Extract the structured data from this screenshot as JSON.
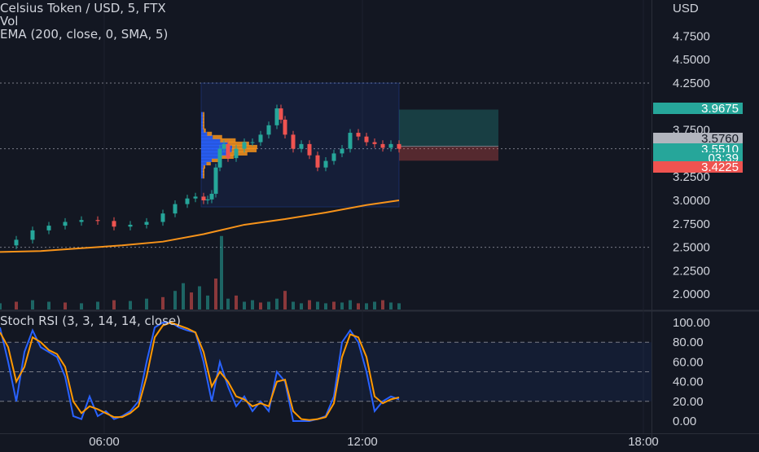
{
  "header": {
    "title": "Celsius Token / USD, 5, FTX",
    "vol_label": "Vol",
    "ema_label": "EMA (200, close, 0, SMA, 5)",
    "stoch_label": "Stoch RSI (3, 3, 14, 14, close)"
  },
  "colors": {
    "background": "#131722",
    "up": "#26a69a",
    "down": "#ef5350",
    "ema": "#f7931a",
    "stoch_k": "#2962ff",
    "stoch_d": "#ff9800",
    "profile_up": "#f7931a",
    "profile_down": "#2962ff"
  },
  "chart_data": [
    {
      "type": "line",
      "name": "price",
      "currency": "USD",
      "yticks": [
        "4.7500",
        "4.5000",
        "4.2500",
        "3.7500",
        "3.2500",
        "3.0000",
        "2.7500",
        "2.5000",
        "2.2500",
        "2.0000"
      ],
      "y_range": [
        1.8,
        4.95
      ],
      "xticks": [
        "06:00",
        "12:00",
        "18:00"
      ],
      "price_tags": [
        {
          "value": "3.9675",
          "kind": "target"
        },
        {
          "value": "3.5760",
          "kind": "entry"
        },
        {
          "value": "3.5510",
          "kind": "last"
        },
        {
          "value": "03:39",
          "kind": "countdown"
        },
        {
          "value": "3.4225",
          "kind": "stop"
        }
      ],
      "horizontal_lines": [
        4.25,
        3.55,
        2.5
      ],
      "series": [
        {
          "kind": "price",
          "x": [
            0,
            20,
            40,
            60,
            80,
            100,
            120,
            140,
            160,
            180,
            200,
            215,
            230,
            240,
            250,
            255,
            260,
            265,
            270,
            275,
            280,
            290,
            300,
            310,
            320,
            330,
            340,
            345,
            350,
            360,
            370,
            380,
            390,
            400,
            410,
            420,
            430,
            440,
            450,
            460,
            470,
            480,
            490
          ],
          "y": [
            2.52,
            2.58,
            2.68,
            2.73,
            2.77,
            2.79,
            2.78,
            2.72,
            2.74,
            2.77,
            2.86,
            2.96,
            3.02,
            3.04,
            3.0,
            3.01,
            3.07,
            3.35,
            3.55,
            3.6,
            3.45,
            3.55,
            3.62,
            3.62,
            3.7,
            3.8,
            3.98,
            3.86,
            3.7,
            3.55,
            3.6,
            3.48,
            3.35,
            3.42,
            3.5,
            3.55,
            3.72,
            3.68,
            3.62,
            3.6,
            3.56,
            3.6,
            3.55
          ]
        },
        {
          "kind": "ema",
          "x": [
            0,
            50,
            100,
            150,
            200,
            250,
            300,
            350,
            400,
            450,
            490
          ],
          "y": [
            2.45,
            2.46,
            2.49,
            2.52,
            2.56,
            2.64,
            2.74,
            2.8,
            2.87,
            2.95,
            3.0
          ]
        }
      ],
      "volume": {
        "x": [
          0,
          20,
          40,
          60,
          80,
          100,
          120,
          140,
          160,
          180,
          200,
          215,
          225,
          235,
          245,
          255,
          265,
          272,
          280,
          290,
          300,
          310,
          320,
          330,
          340,
          350,
          360,
          370,
          380,
          390,
          400,
          410,
          420,
          430,
          440,
          450,
          460,
          470,
          480,
          490
        ],
        "values": [
          8,
          10,
          12,
          10,
          9,
          8,
          10,
          12,
          11,
          14,
          16,
          24,
          34,
          22,
          30,
          18,
          40,
          95,
          14,
          18,
          10,
          12,
          9,
          10,
          14,
          24,
          10,
          8,
          12,
          10,
          8,
          10,
          9,
          12,
          8,
          8,
          10,
          12,
          9,
          8
        ],
        "max": 100
      },
      "trade_box": {
        "x_start": 490,
        "x_end": 612,
        "entry": 3.576,
        "target": 3.9675,
        "stop": 3.4225
      },
      "profile_box": {
        "x_start": 247,
        "x_end": 490,
        "y_top": 4.25,
        "y_bottom": 2.93
      }
    },
    {
      "type": "line",
      "name": "stoch_rsi",
      "yticks": [
        "100.00",
        "80.00",
        "60.00",
        "40.00",
        "20.00",
        "0.00"
      ],
      "y_range": [
        0,
        100
      ],
      "levels": [
        80,
        50,
        20
      ],
      "series": [
        {
          "kind": "k",
          "x": [
            0,
            10,
            20,
            30,
            40,
            50,
            60,
            70,
            80,
            90,
            100,
            110,
            120,
            130,
            140,
            150,
            160,
            170,
            180,
            190,
            200,
            210,
            220,
            230,
            240,
            250,
            260,
            270,
            280,
            290,
            300,
            310,
            320,
            330,
            340,
            350,
            360,
            370,
            380,
            390,
            400,
            410,
            420,
            430,
            440,
            450,
            460,
            470,
            480,
            490
          ],
          "y": [
            95,
            60,
            20,
            70,
            92,
            75,
            70,
            65,
            45,
            5,
            2,
            25,
            5,
            10,
            2,
            5,
            10,
            20,
            60,
            95,
            100,
            100,
            95,
            92,
            90,
            60,
            20,
            60,
            35,
            15,
            25,
            10,
            20,
            10,
            50,
            40,
            0,
            0,
            0,
            2,
            5,
            25,
            80,
            92,
            80,
            50,
            10,
            20,
            25,
            22
          ]
        },
        {
          "kind": "d",
          "x": [
            0,
            10,
            20,
            30,
            40,
            50,
            60,
            70,
            80,
            90,
            100,
            110,
            120,
            130,
            140,
            150,
            160,
            170,
            180,
            190,
            200,
            210,
            220,
            230,
            240,
            250,
            260,
            270,
            280,
            290,
            300,
            310,
            320,
            330,
            340,
            350,
            360,
            370,
            380,
            390,
            400,
            410,
            420,
            430,
            440,
            450,
            460,
            470,
            480,
            490
          ],
          "y": [
            90,
            75,
            40,
            55,
            85,
            80,
            72,
            68,
            55,
            20,
            8,
            15,
            12,
            8,
            4,
            4,
            8,
            15,
            45,
            85,
            97,
            100,
            97,
            94,
            90,
            70,
            35,
            50,
            40,
            25,
            22,
            15,
            18,
            15,
            40,
            42,
            10,
            2,
            1,
            2,
            4,
            18,
            65,
            88,
            85,
            65,
            25,
            18,
            22,
            24
          ]
        }
      ]
    }
  ]
}
